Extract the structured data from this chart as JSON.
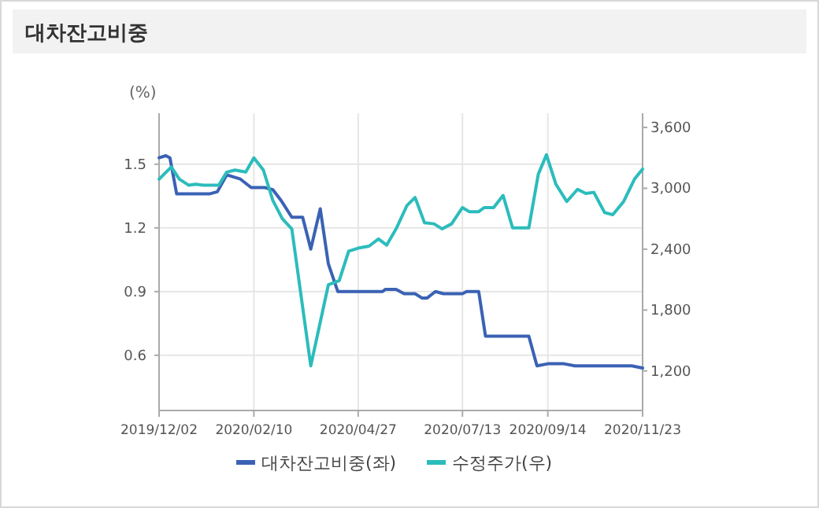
{
  "chart_data": {
    "type": "line",
    "title": "대차잔고비중",
    "ylabel": "(%)",
    "legend": "bottom",
    "grid": true,
    "marker": "none",
    "line_style": "solid",
    "xlim": [
      "2019-12-02",
      "2020-11-23"
    ],
    "xticks": [
      {
        "value": "2019-12-02",
        "label": "2019/12/02"
      },
      {
        "value": "2020-02-10",
        "label": "2020/02/10"
      },
      {
        "value": "2020-04-27",
        "label": "2020/04/27"
      },
      {
        "value": "2020-07-13",
        "label": "2020/07/13"
      },
      {
        "value": "2020-09-14",
        "label": "2020/09/14"
      },
      {
        "value": "2020-11-23",
        "label": "2020/11/23"
      }
    ],
    "ylim": [
      0.34,
      1.74
    ],
    "yticks": [
      0.6,
      0.9,
      1.2,
      1.5
    ],
    "y2lim": [
      810,
      3740
    ],
    "y2ticks": [
      {
        "value": 1200,
        "label": "1,200"
      },
      {
        "value": 1800,
        "label": "1,800"
      },
      {
        "value": 2400,
        "label": "2,400"
      },
      {
        "value": 3000,
        "label": "3,000"
      },
      {
        "value": 3600,
        "label": "3,600"
      }
    ],
    "series": [
      {
        "name": "대차잔고비중(좌)",
        "color": "#3a62b4",
        "x": [
          "2019-12-02",
          "2019-12-07",
          "2019-12-10",
          "2019-12-15",
          "2020-01-08",
          "2020-01-14",
          "2020-01-21",
          "2020-01-31",
          "2020-02-08",
          "2020-02-18",
          "2020-02-24",
          "2020-03-01",
          "2020-03-09",
          "2020-03-17",
          "2020-03-23",
          "2020-03-30",
          "2020-04-05",
          "2020-04-12",
          "2020-05-15",
          "2020-05-17",
          "2020-05-25",
          "2020-05-31",
          "2020-06-08",
          "2020-06-13",
          "2020-06-17",
          "2020-06-23",
          "2020-06-29",
          "2020-07-13",
          "2020-07-16",
          "2020-07-25",
          "2020-07-30",
          "2020-08-31",
          "2020-09-06",
          "2020-09-14",
          "2020-09-26",
          "2020-10-04",
          "2020-11-15",
          "2020-11-23"
        ],
        "values": [
          1.53,
          1.54,
          1.53,
          1.36,
          1.36,
          1.37,
          1.45,
          1.43,
          1.39,
          1.39,
          1.38,
          1.33,
          1.25,
          1.25,
          1.1,
          1.29,
          1.03,
          0.9,
          0.9,
          0.91,
          0.91,
          0.89,
          0.89,
          0.87,
          0.87,
          0.9,
          0.89,
          0.89,
          0.9,
          0.9,
          0.69,
          0.69,
          0.55,
          0.56,
          0.56,
          0.55,
          0.55,
          0.54
        ]
      },
      {
        "name": "수정주가(우)",
        "color": "#2cbcbc",
        "axis": "y2",
        "x": [
          "2019-12-02",
          "2019-12-11",
          "2019-12-17",
          "2019-12-24",
          "2019-12-29",
          "2020-01-04",
          "2020-01-15",
          "2020-01-21",
          "2020-01-27",
          "2020-02-04",
          "2020-02-10",
          "2020-02-17",
          "2020-02-24",
          "2020-03-02",
          "2020-03-09",
          "2020-03-23",
          "2020-04-05",
          "2020-04-13",
          "2020-04-20",
          "2020-04-27",
          "2020-05-05",
          "2020-05-12",
          "2020-05-18",
          "2020-05-25",
          "2020-06-02",
          "2020-06-08",
          "2020-06-15",
          "2020-06-22",
          "2020-06-28",
          "2020-07-05",
          "2020-07-13",
          "2020-07-18",
          "2020-07-25",
          "2020-07-29",
          "2020-08-05",
          "2020-08-12",
          "2020-08-19",
          "2020-08-31",
          "2020-09-07",
          "2020-09-13",
          "2020-09-20",
          "2020-09-28",
          "2020-10-06",
          "2020-10-12",
          "2020-10-18",
          "2020-10-26",
          "2020-11-01",
          "2020-11-09",
          "2020-11-17",
          "2020-11-23"
        ],
        "values": [
          3090,
          3210,
          3090,
          3030,
          3040,
          3030,
          3030,
          3160,
          3180,
          3160,
          3300,
          3180,
          2880,
          2700,
          2600,
          1250,
          2050,
          2090,
          2380,
          2410,
          2430,
          2500,
          2440,
          2600,
          2830,
          2910,
          2660,
          2650,
          2600,
          2650,
          2810,
          2770,
          2770,
          2810,
          2810,
          2930,
          2610,
          2610,
          3140,
          3330,
          3040,
          2870,
          2990,
          2950,
          2960,
          2760,
          2740,
          2870,
          3090,
          3190
        ]
      }
    ]
  }
}
